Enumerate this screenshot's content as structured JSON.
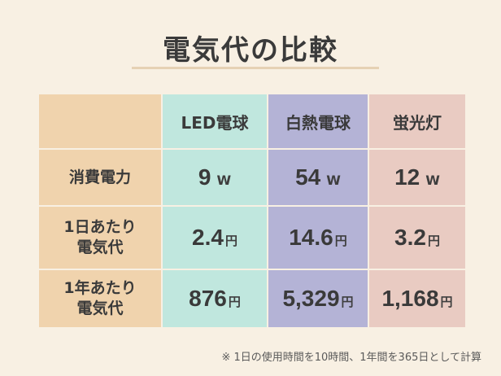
{
  "title": "電気代の比較",
  "columns": [
    "LED電球",
    "白熱電球",
    "蛍光灯"
  ],
  "rows": [
    {
      "label_line1": "消費電力",
      "label_line2": "",
      "unit": "W",
      "values": [
        "9",
        "54",
        "12"
      ]
    },
    {
      "label_line1": "1日あたり",
      "label_line2": "電気代",
      "unit": "円",
      "values": [
        "2.4",
        "14.6",
        "3.2"
      ]
    },
    {
      "label_line1": "1年あたり",
      "label_line2": "電気代",
      "unit": "円",
      "values": [
        "876",
        "5,329",
        "1,168"
      ]
    }
  ],
  "footnote": "※ 1日の使用時間を10時間、1年間を365日として計算",
  "colors": {
    "background": "#f8f0e3",
    "row_header": "#f0d3ad",
    "led_column": "#c0e7de",
    "incandescent_column": "#b4b3d6",
    "fluorescent_column": "#e9cbc2"
  }
}
